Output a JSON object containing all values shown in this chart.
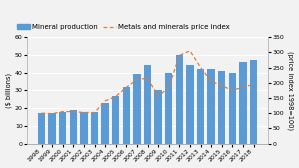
{
  "years": [
    "1998",
    "1999",
    "2000",
    "2001",
    "2002",
    "2003",
    "2004",
    "2005",
    "2006",
    "2007",
    "2008",
    "2009",
    "2010",
    "2011",
    "2012",
    "2013",
    "2014",
    "2015",
    "2016",
    "2017",
    "2018"
  ],
  "mineral_production": [
    17,
    17,
    18,
    19,
    18,
    18,
    23,
    27,
    32,
    39,
    44,
    30,
    40,
    50,
    44,
    42,
    42,
    41,
    40,
    46,
    47
  ],
  "price_index": [
    100,
    98,
    105,
    105,
    102,
    102,
    140,
    155,
    185,
    210,
    215,
    155,
    185,
    290,
    305,
    250,
    205,
    190,
    175,
    185,
    195
  ],
  "bar_color": "#5b9bd5",
  "line_color": "#e07b39",
  "bar_label": "Mineral production",
  "line_label": "Metals and minerals price index",
  "ylabel_left": "($ billions)",
  "ylabel_right": "(price index 1998=100)",
  "ylim_left": [
    0,
    60
  ],
  "ylim_right": [
    0,
    350
  ],
  "yticks_left": [
    0,
    10,
    20,
    30,
    40,
    50,
    60
  ],
  "yticks_right": [
    0,
    50,
    100,
    150,
    200,
    250,
    300,
    350
  ],
  "background_color": "#f2f2f2",
  "plot_bg_color": "#f2f2f2",
  "grid_color": "#ffffff",
  "tick_fontsize": 4.5,
  "axis_label_fontsize": 4.8,
  "legend_fontsize": 5.0
}
